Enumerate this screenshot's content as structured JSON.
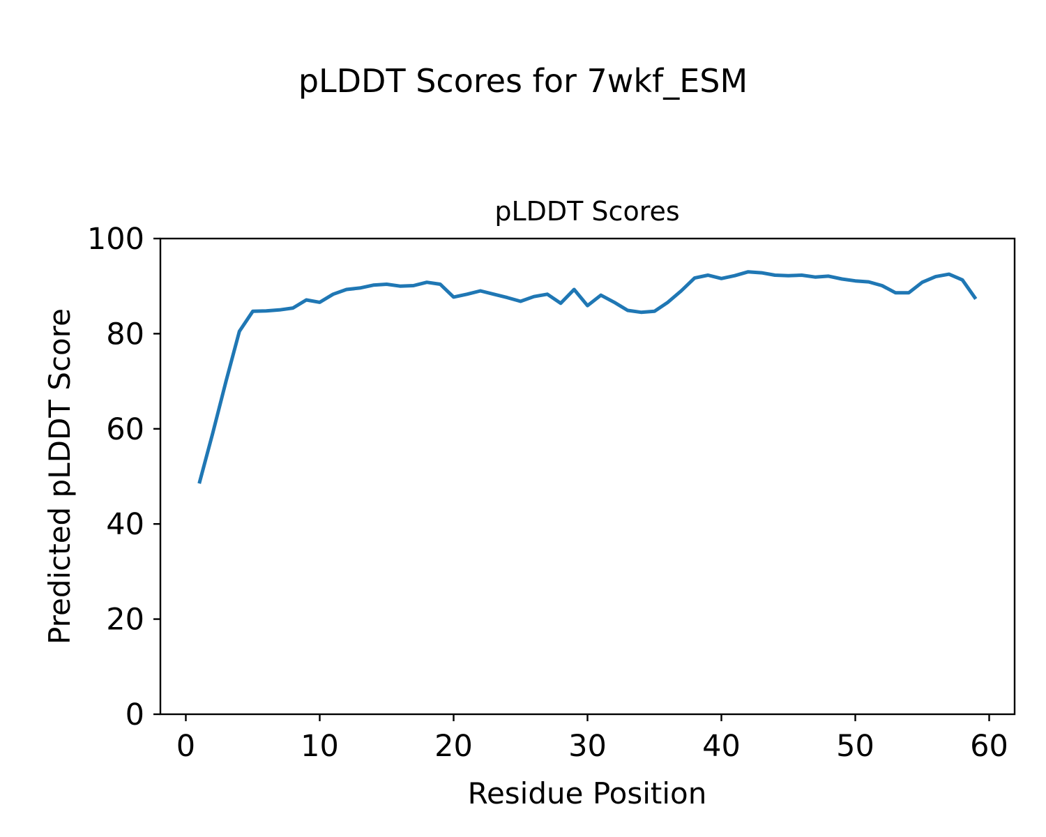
{
  "figure": {
    "suptitle": "pLDDT Scores for 7wkf_ESM",
    "background_color": "#ffffff",
    "spine_color": "#000000",
    "text_color": "#000000"
  },
  "chart_data": {
    "type": "line",
    "title": "pLDDT Scores",
    "xlabel": "Residue Position",
    "ylabel": "Predicted pLDDT Score",
    "xlim": [
      -1.9,
      61.9
    ],
    "ylim": [
      0,
      100
    ],
    "xticks": [
      0,
      10,
      20,
      30,
      40,
      50,
      60
    ],
    "yticks": [
      0,
      20,
      40,
      60,
      80,
      100
    ],
    "grid": false,
    "legend": false,
    "series": [
      {
        "name": "pLDDT",
        "color": "#1f77b4",
        "line_width": 5,
        "x": [
          1,
          2,
          3,
          4,
          5,
          6,
          7,
          8,
          9,
          10,
          11,
          12,
          13,
          14,
          15,
          16,
          17,
          18,
          19,
          20,
          21,
          22,
          23,
          24,
          25,
          26,
          27,
          28,
          29,
          30,
          31,
          32,
          33,
          34,
          35,
          36,
          37,
          38,
          39,
          40,
          41,
          42,
          43,
          44,
          45,
          46,
          47,
          48,
          49,
          50,
          51,
          52,
          53,
          54,
          55,
          56,
          57,
          58,
          59
        ],
        "y": [
          48.5,
          59.0,
          70.0,
          80.5,
          84.7,
          84.8,
          85.0,
          85.4,
          87.1,
          86.6,
          88.3,
          89.3,
          89.6,
          90.2,
          90.4,
          90.0,
          90.1,
          90.8,
          90.4,
          87.7,
          88.3,
          89.0,
          88.3,
          87.6,
          86.8,
          87.8,
          88.3,
          86.4,
          89.3,
          85.9,
          88.1,
          86.6,
          84.9,
          84.5,
          84.7,
          86.6,
          89.0,
          91.7,
          92.3,
          91.6,
          92.2,
          93.0,
          92.8,
          92.3,
          92.2,
          92.3,
          91.9,
          92.1,
          91.5,
          91.1,
          90.9,
          90.1,
          88.6,
          88.6,
          90.8,
          92.0,
          92.5,
          91.3,
          87.3
        ]
      }
    ]
  }
}
